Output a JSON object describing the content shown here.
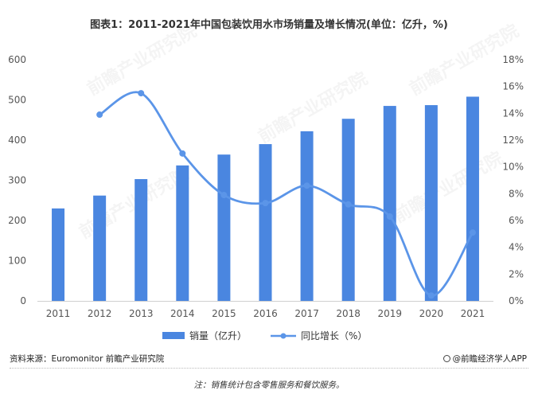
{
  "title": "图表1：2011-2021年中国包装饮用水市场销量及增长情况(单位：亿升，%)",
  "source": "资料来源：Euromonitor 前瞻产业研究院",
  "brand": "@前瞻经济学人APP",
  "note": "注：销售统计包含零售服务和餐饮服务。",
  "watermark": "前瞻产业研究院",
  "colors": {
    "bar": "#4a86e0",
    "line": "#5b95e8",
    "axis_text": "#555555"
  },
  "chart_data": {
    "type": "bar",
    "categories": [
      "2011",
      "2012",
      "2013",
      "2014",
      "2015",
      "2016",
      "2017",
      "2018",
      "2019",
      "2020",
      "2021"
    ],
    "series": [
      {
        "name": "销量（亿升）",
        "type": "bar",
        "axis": "left",
        "values": [
          230,
          262,
          303,
          337,
          364,
          390,
          422,
          453,
          485,
          487,
          508
        ]
      },
      {
        "name": "同比增长（%）",
        "type": "line",
        "axis": "right",
        "smooth": true,
        "values": [
          null,
          13.9,
          15.5,
          11.0,
          7.9,
          7.3,
          8.6,
          7.2,
          6.3,
          0.4,
          5.1
        ]
      }
    ],
    "y_left": {
      "min": 0,
      "max": 600,
      "ticks": [
        "0",
        "100",
        "200",
        "300",
        "400",
        "500",
        "600"
      ]
    },
    "y_right": {
      "min": 0,
      "max": 18,
      "ticks": [
        "0%",
        "2%",
        "4%",
        "6%",
        "8%",
        "10%",
        "12%",
        "14%",
        "16%",
        "18%"
      ]
    },
    "grid": false,
    "legend_position": "bottom"
  }
}
